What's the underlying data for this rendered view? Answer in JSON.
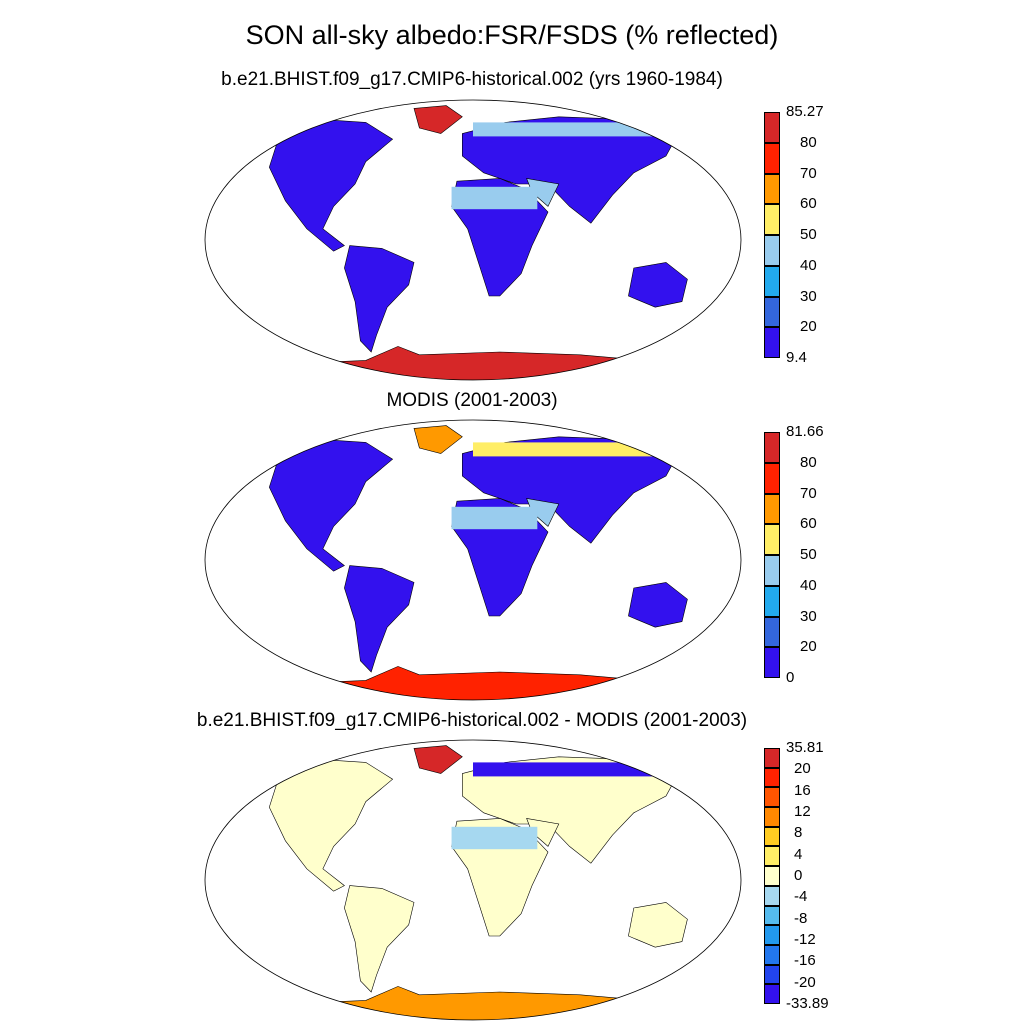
{
  "title": "SON all-sky albedo:FSR/FSDS (% reflected)",
  "panels": [
    {
      "subtitle": "b.e21.BHIST.f09_g17.CMIP6-historical.002 (yrs 1960-1984)",
      "colorbar": {
        "labels": [
          "85.27",
          "80",
          "70",
          "60",
          "50",
          "40",
          "30",
          "20",
          "9.4"
        ],
        "colors": [
          "#d62728",
          "#ff2200",
          "#ff9900",
          "#ffee66",
          "#99ccee",
          "#22aaee",
          "#3366dd",
          "#3311ee"
        ]
      }
    },
    {
      "subtitle": "MODIS (2001-2003)",
      "colorbar": {
        "labels": [
          "81.66",
          "80",
          "70",
          "60",
          "50",
          "40",
          "30",
          "20",
          "0"
        ],
        "colors": [
          "#d62728",
          "#ff2200",
          "#ff9900",
          "#ffee66",
          "#99ccee",
          "#22aaee",
          "#3366dd",
          "#3311ee"
        ]
      }
    },
    {
      "subtitle": "b.e21.BHIST.f09_g17.CMIP6-historical.002 - MODIS (2001-2003)",
      "colorbar": {
        "labels": [
          "35.81",
          "20",
          "16",
          "12",
          "8",
          "4",
          "0",
          "-4",
          "-8",
          "-12",
          "-16",
          "-20",
          "-33.89"
        ],
        "colors": [
          "#d62728",
          "#ff2200",
          "#ff5500",
          "#ff8800",
          "#ffcc22",
          "#ffee66",
          "#ffffcc",
          "#a6d8f0",
          "#55bbee",
          "#2299ee",
          "#2277ee",
          "#2244ee",
          "#3311ee"
        ]
      }
    }
  ]
}
